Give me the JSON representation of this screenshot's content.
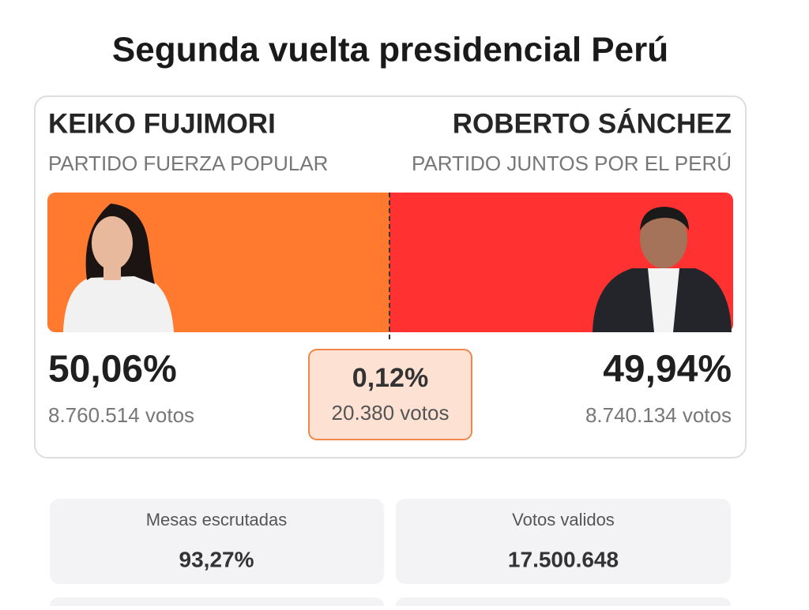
{
  "header": {
    "title": "Segunda vuelta presidencial Perú"
  },
  "candidates": [
    {
      "name": "KEIKO FUJIMORI",
      "party": "PARTIDO FUERZA POPULAR",
      "percent": "50,06%",
      "votes": "8.760.514 votos"
    },
    {
      "name": "ROBERTO SÁNCHEZ",
      "party": "PARTIDO JUNTOS POR EL PERÚ",
      "percent": "49,94%",
      "votes": "8.740.134 votos"
    }
  ],
  "difference": {
    "percent": "0,12%",
    "votes": "20.380 votos"
  },
  "stats": [
    {
      "label": "Mesas escrutadas",
      "value": "93,27%"
    },
    {
      "label": "Votos validos",
      "value": "17.500.648"
    }
  ]
}
